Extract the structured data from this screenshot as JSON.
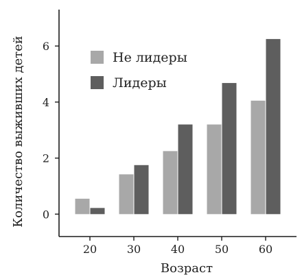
{
  "chart_data": {
    "type": "bar",
    "categories": [
      "20",
      "30",
      "40",
      "50",
      "60"
    ],
    "series": [
      {
        "name": "Не лидеры",
        "values": [
          0.55,
          1.42,
          2.25,
          3.2,
          4.05
        ],
        "color": "#a8a8a8"
      },
      {
        "name": "Лидеры",
        "values": [
          0.22,
          1.75,
          3.2,
          4.68,
          6.25
        ],
        "color": "#5e5e5e"
      }
    ],
    "xlabel": "Возраст",
    "ylabel": "Количество выживших детей",
    "ylim": [
      -0.8,
      7.3
    ],
    "yticks": [
      0,
      2,
      4,
      6
    ],
    "grid": false,
    "legend_position": "top-left"
  }
}
